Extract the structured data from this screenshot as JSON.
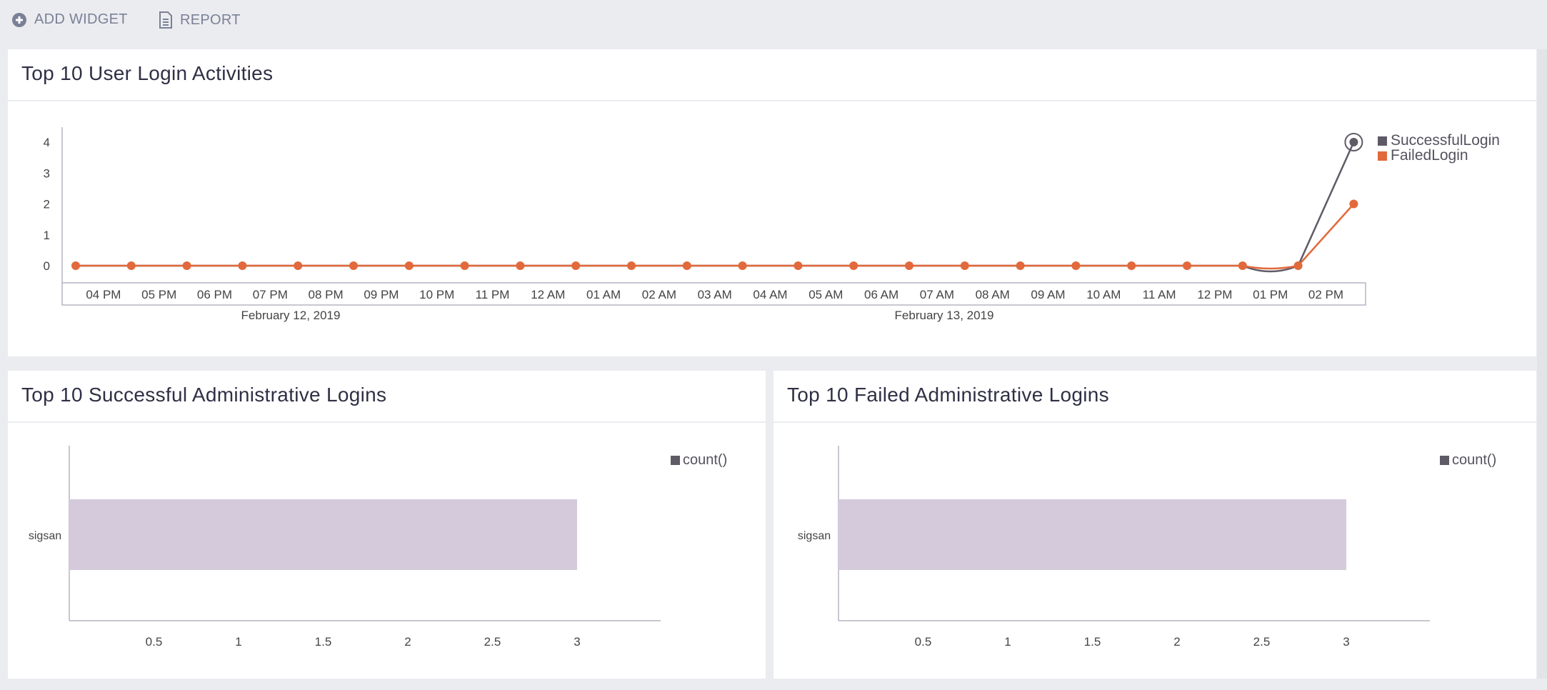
{
  "toolbar": {
    "add_widget": "ADD WIDGET",
    "report": "REPORT"
  },
  "colors": {
    "background": "#ebecf0",
    "successful": "#5f5b66",
    "failed": "#e2693b",
    "bar": "#d5cadb",
    "axis": "#b9b4c3"
  },
  "widgets": [
    {
      "title": "Top 10 User Login Activities",
      "chart_data": {
        "type": "line",
        "x_tick_labels": [
          "04 PM",
          "05 PM",
          "06 PM",
          "07 PM",
          "08 PM",
          "09 PM",
          "10 PM",
          "11 PM",
          "12 AM",
          "01 AM",
          "02 AM",
          "03 AM",
          "04 AM",
          "05 AM",
          "06 AM",
          "07 AM",
          "08 AM",
          "09 AM",
          "10 AM",
          "11 AM",
          "12 PM",
          "01 PM",
          "02 PM"
        ],
        "date_labels": [
          "February 12, 2019",
          "February 13, 2019"
        ],
        "y_ticks": [
          0,
          1,
          2,
          3,
          4
        ],
        "ylim": [
          0,
          4
        ],
        "series": [
          {
            "name": "SuccessfulLogin",
            "color": "#5f5b66",
            "values": [
              0,
              0,
              0,
              0,
              0,
              0,
              0,
              0,
              0,
              0,
              0,
              0,
              0,
              0,
              0,
              0,
              0,
              0,
              0,
              0,
              0,
              0,
              0,
              4
            ]
          },
          {
            "name": "FailedLogin",
            "color": "#e2693b",
            "values": [
              0,
              0,
              0,
              0,
              0,
              0,
              0,
              0,
              0,
              0,
              0,
              0,
              0,
              0,
              0,
              0,
              0,
              0,
              0,
              0,
              0,
              0,
              0,
              2
            ]
          }
        ],
        "legend": "right"
      }
    },
    {
      "title": "Top 10 Successful Administrative Logins",
      "chart_data": {
        "type": "bar",
        "orientation": "horizontal",
        "categories": [
          "sigsan"
        ],
        "series": [
          {
            "name": "count()",
            "values": [
              3
            ]
          }
        ],
        "x_ticks": [
          0.5,
          1,
          1.5,
          2,
          2.5,
          3
        ],
        "xlim": [
          0,
          3.5
        ],
        "legend": "top-right"
      }
    },
    {
      "title": "Top 10 Failed Administrative Logins",
      "chart_data": {
        "type": "bar",
        "orientation": "horizontal",
        "categories": [
          "sigsan"
        ],
        "series": [
          {
            "name": "count()",
            "values": [
              3
            ]
          }
        ],
        "x_ticks": [
          0.5,
          1,
          1.5,
          2,
          2.5,
          3
        ],
        "xlim": [
          0,
          3.5
        ],
        "legend": "top-right"
      }
    }
  ]
}
